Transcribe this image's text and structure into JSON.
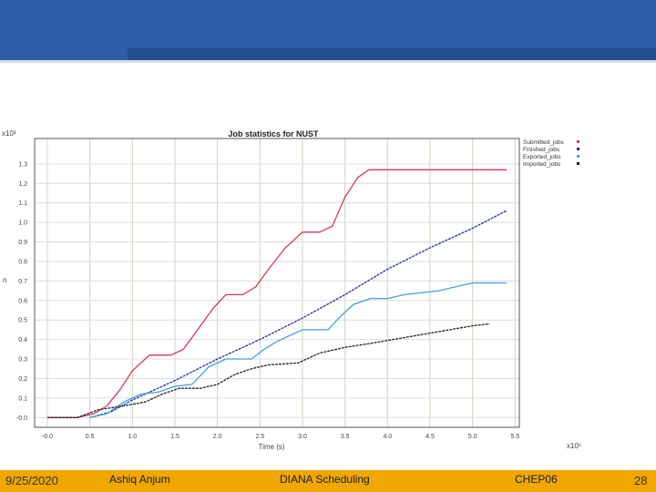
{
  "footer": {
    "date": "9/25/2020",
    "author": "Ashiq Anjum",
    "title": "DIANA Scheduling",
    "conference": "CHEP06",
    "page": "28"
  },
  "colors": {
    "header": "#2f5ea8",
    "footer": "#f0a800"
  },
  "chart_data": {
    "type": "line",
    "title": "Job statistics for NUST",
    "xlabel": "Time (s)",
    "ylabel": "n",
    "x_multiplier": "x10⁵",
    "y_multiplier": "x10³",
    "xlim": [
      -0.15,
      5.55
    ],
    "ylim": [
      -0.05,
      1.43
    ],
    "x_ticks": [
      {
        "v": -0.0,
        "label": "-0.0"
      },
      {
        "v": 0.5,
        "label": "0.5"
      },
      {
        "v": 1.0,
        "label": "1.0"
      },
      {
        "v": 1.5,
        "label": "1.5"
      },
      {
        "v": 2.0,
        "label": "2.0"
      },
      {
        "v": 2.5,
        "label": "2.5"
      },
      {
        "v": 3.0,
        "label": "3.0"
      },
      {
        "v": 3.5,
        "label": "3.5"
      },
      {
        "v": 4.0,
        "label": "4.0"
      },
      {
        "v": 4.5,
        "label": "4.5"
      },
      {
        "v": 5.0,
        "label": "5.0"
      },
      {
        "v": 5.5,
        "label": "5.5"
      }
    ],
    "y_ticks": [
      {
        "v": 0.0,
        "label": "-0.0"
      },
      {
        "v": 0.1,
        "label": "0.1"
      },
      {
        "v": 0.2,
        "label": "0.2"
      },
      {
        "v": 0.3,
        "label": "0.3"
      },
      {
        "v": 0.4,
        "label": "0.4"
      },
      {
        "v": 0.5,
        "label": "0.5"
      },
      {
        "v": 0.6,
        "label": "0.6"
      },
      {
        "v": 0.7,
        "label": "0.7"
      },
      {
        "v": 0.8,
        "label": "0.8"
      },
      {
        "v": 0.9,
        "label": "0.9"
      },
      {
        "v": 1.0,
        "label": "1.0"
      },
      {
        "v": 1.1,
        "label": "1.1"
      },
      {
        "v": 1.2,
        "label": "1.2"
      },
      {
        "v": 1.3,
        "label": "1.3"
      }
    ],
    "grid": true,
    "legend_position": "top-right",
    "series": [
      {
        "name": "Submitted_jobs",
        "color": "#d9365a",
        "dashed": false,
        "points": [
          [
            -0.0,
            0.0
          ],
          [
            0.35,
            0.0
          ],
          [
            0.55,
            0.02
          ],
          [
            0.7,
            0.06
          ],
          [
            0.85,
            0.14
          ],
          [
            1.0,
            0.24
          ],
          [
            1.2,
            0.32
          ],
          [
            1.45,
            0.32
          ],
          [
            1.6,
            0.35
          ],
          [
            1.8,
            0.47
          ],
          [
            1.95,
            0.56
          ],
          [
            2.1,
            0.63
          ],
          [
            2.3,
            0.63
          ],
          [
            2.45,
            0.67
          ],
          [
            2.6,
            0.76
          ],
          [
            2.8,
            0.87
          ],
          [
            3.0,
            0.95
          ],
          [
            3.2,
            0.95
          ],
          [
            3.35,
            0.98
          ],
          [
            3.5,
            1.13
          ],
          [
            3.65,
            1.23
          ],
          [
            3.78,
            1.27
          ],
          [
            4.0,
            1.27
          ],
          [
            5.4,
            1.27
          ]
        ]
      },
      {
        "name": "Finished_jobs",
        "color": "#1f2fa8",
        "dashed": true,
        "points": [
          [
            0.5,
            0.0
          ],
          [
            0.75,
            0.03
          ],
          [
            1.0,
            0.09
          ],
          [
            1.5,
            0.19
          ],
          [
            2.0,
            0.3
          ],
          [
            2.5,
            0.4
          ],
          [
            3.0,
            0.51
          ],
          [
            3.5,
            0.63
          ],
          [
            4.0,
            0.76
          ],
          [
            4.5,
            0.87
          ],
          [
            5.0,
            0.97
          ],
          [
            5.4,
            1.06
          ]
        ]
      },
      {
        "name": "Exported_jobs",
        "color": "#3fa2d8",
        "dashed": false,
        "points": [
          [
            0.5,
            0.0
          ],
          [
            0.7,
            0.02
          ],
          [
            0.9,
            0.08
          ],
          [
            1.1,
            0.12
          ],
          [
            1.3,
            0.13
          ],
          [
            1.5,
            0.16
          ],
          [
            1.7,
            0.17
          ],
          [
            1.9,
            0.26
          ],
          [
            2.1,
            0.3
          ],
          [
            2.4,
            0.3
          ],
          [
            2.55,
            0.35
          ],
          [
            2.7,
            0.39
          ],
          [
            2.85,
            0.42
          ],
          [
            3.0,
            0.45
          ],
          [
            3.3,
            0.45
          ],
          [
            3.45,
            0.52
          ],
          [
            3.6,
            0.58
          ],
          [
            3.8,
            0.61
          ],
          [
            4.0,
            0.61
          ],
          [
            4.2,
            0.63
          ],
          [
            4.6,
            0.65
          ],
          [
            5.0,
            0.69
          ],
          [
            5.4,
            0.69
          ]
        ]
      },
      {
        "name": "Imported_jobs",
        "color": "#222222",
        "dashed": true,
        "points": [
          [
            -0.0,
            0.0
          ],
          [
            0.35,
            0.0
          ],
          [
            0.6,
            0.04
          ],
          [
            0.9,
            0.06
          ],
          [
            1.15,
            0.08
          ],
          [
            1.35,
            0.12
          ],
          [
            1.55,
            0.15
          ],
          [
            1.8,
            0.15
          ],
          [
            2.0,
            0.17
          ],
          [
            2.2,
            0.22
          ],
          [
            2.4,
            0.25
          ],
          [
            2.6,
            0.27
          ],
          [
            2.95,
            0.28
          ],
          [
            3.2,
            0.33
          ],
          [
            3.5,
            0.36
          ],
          [
            3.8,
            0.38
          ],
          [
            4.2,
            0.41
          ],
          [
            4.6,
            0.44
          ],
          [
            5.0,
            0.47
          ],
          [
            5.2,
            0.48
          ]
        ]
      }
    ]
  }
}
